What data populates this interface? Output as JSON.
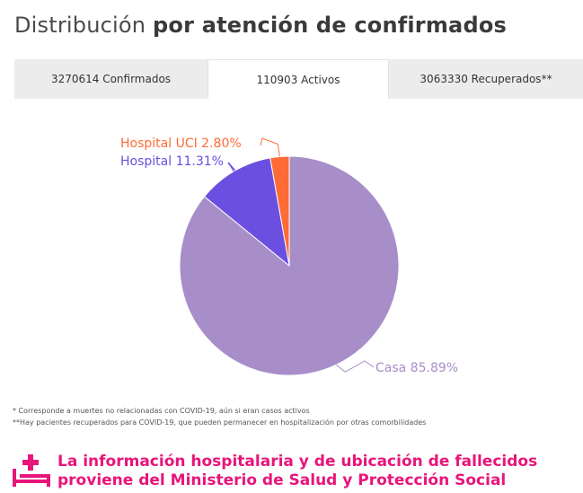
{
  "title": {
    "prefix": "Distribución",
    "emphasis": "por atención de confirmados"
  },
  "tabs": [
    {
      "label": "3270614 Confirmados",
      "active": false
    },
    {
      "label": "110903 Activos",
      "active": true
    },
    {
      "label": "3063330 Recuperados**",
      "active": false
    }
  ],
  "chart_data": {
    "type": "pie",
    "slices": [
      {
        "label": "Hospital UCI 2.80%",
        "value": 2.8,
        "color": "#ff6b35"
      },
      {
        "label": "Hospital 11.31%",
        "value": 11.31,
        "color": "#6b4fe0"
      },
      {
        "label": "Casa 85.89%",
        "value": 85.89,
        "color": "#a88ec9"
      }
    ],
    "start_angle_deg": 0,
    "direction": "counterclockwise"
  },
  "notes": [
    "* Corresponde a muertes no relacionadas con COVID-19, aún si eran casos activos",
    "**Hay pacientes recuperados para COVID-19, que pueden permanecer en hospitalización por otras comorbilidades"
  ],
  "footer": {
    "icon": "hospital-bed-icon",
    "line1": "La información hospitalaria y de ubicación de fallecidos",
    "line2": "proviene del Ministerio de Salud y Protección Social",
    "color": "#e8157a"
  }
}
